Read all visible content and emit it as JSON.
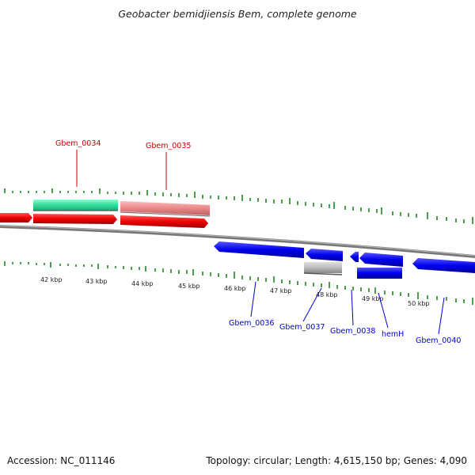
{
  "header": {
    "title": "Geobacter bemidjiensis Bem, complete genome"
  },
  "footer": {
    "accession": "Accession: NC_011146",
    "summary": "Topology: circular; Length: 4,615,150 bp; Genes: 4,090"
  },
  "map": {
    "ticks": [
      "42 kbp",
      "43 kbp",
      "44 kbp",
      "45 kbp",
      "46 kbp",
      "47 kbp",
      "48 kbp",
      "49 kbp",
      "50 kbp"
    ],
    "gene_labels": {
      "g34": "Gbem_0034",
      "g35": "Gbem_0035",
      "g36": "Gbem_0036",
      "g37": "Gbem_0037",
      "g38": "Gbem_0038",
      "hemH": "hemH",
      "g40": "Gbem_0040"
    }
  },
  "colors": {
    "forward_gene": "#ee0000",
    "reverse_gene": "#0000ee",
    "highlight_green": "#33dd99",
    "highlight_pink": "#e88888",
    "pseudo_gray": "#bbbbbb",
    "backbone": "#888888",
    "gc_tick": "#228822"
  }
}
